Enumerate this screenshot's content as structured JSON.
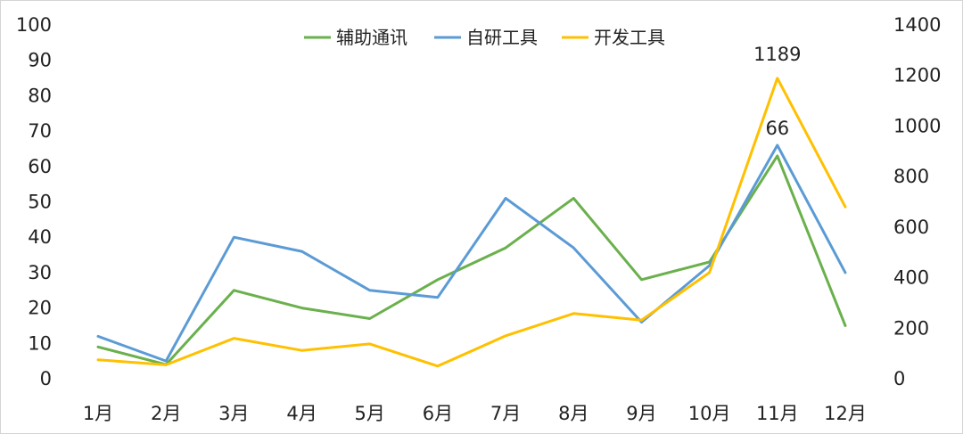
{
  "chart_data": {
    "type": "line",
    "categories": [
      "1月",
      "2月",
      "3月",
      "4月",
      "5月",
      "6月",
      "7月",
      "8月",
      "9月",
      "10月",
      "11月",
      "12月"
    ],
    "y_left": {
      "ylim": [
        0,
        100
      ],
      "ticks": [
        "0",
        "10",
        "20",
        "30",
        "40",
        "50",
        "60",
        "70",
        "80",
        "90",
        "100"
      ]
    },
    "y_right": {
      "ylim": [
        0,
        1400
      ],
      "ticks": [
        "0",
        "200",
        "400",
        "600",
        "800",
        "1000",
        "1200",
        "1400"
      ]
    },
    "grid": false,
    "legend_position": "top-center",
    "series": [
      {
        "name": "辅助通讯",
        "axis": "left",
        "color": "#6ab04c",
        "values": [
          9,
          4,
          25,
          20,
          17,
          28,
          37,
          51,
          28,
          33,
          63,
          15
        ]
      },
      {
        "name": "自研工具",
        "axis": "left",
        "color": "#5b9bd5",
        "values": [
          12,
          5,
          40,
          36,
          25,
          23,
          51,
          37,
          16,
          32,
          66,
          30
        ]
      },
      {
        "name": "开发工具",
        "axis": "right",
        "color": "#ffc000",
        "values": [
          75,
          55,
          160,
          112,
          138,
          50,
          170,
          258,
          232,
          420,
          1189,
          680
        ]
      }
    ],
    "annotations": [
      {
        "series": "开发工具",
        "index": 10,
        "text": "1189"
      },
      {
        "series": "自研工具",
        "index": 10,
        "text": "66"
      }
    ]
  }
}
